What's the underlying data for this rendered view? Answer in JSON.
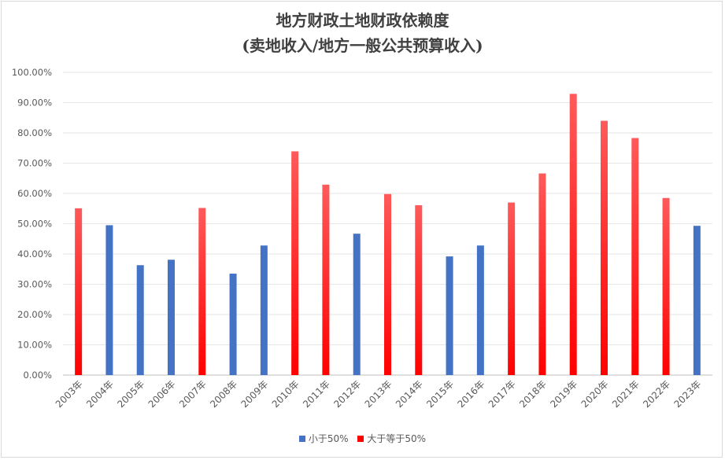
{
  "chart_data": {
    "type": "bar",
    "title": "地方财政土地财政依赖度",
    "subtitle": "(卖地收入/地方一般公共预算收入)",
    "categories": [
      "2003年",
      "2004年",
      "2005年",
      "2006年",
      "2007年",
      "2008年",
      "2009年",
      "2010年",
      "2011年",
      "2012年",
      "2013年",
      "2014年",
      "2015年",
      "2016年",
      "2017年",
      "2018年",
      "2019年",
      "2020年",
      "2021年",
      "2022年",
      "2023年"
    ],
    "series": [
      {
        "name": "小于50%",
        "color": "#4472c4",
        "values": [
          null,
          49.5,
          36.3,
          38.1,
          null,
          33.5,
          42.8,
          null,
          null,
          46.7,
          null,
          null,
          39.2,
          42.8,
          null,
          null,
          null,
          null,
          null,
          null,
          49.3
        ]
      },
      {
        "name": "大于等于50%",
        "color": "#ff0000",
        "values": [
          55.1,
          null,
          null,
          null,
          55.2,
          null,
          null,
          73.9,
          62.9,
          null,
          59.8,
          56.1,
          null,
          null,
          57.0,
          66.6,
          92.9,
          84.0,
          78.3,
          58.5,
          null
        ]
      }
    ],
    "ylim": [
      0,
      100
    ],
    "yticks": [
      "0.00%",
      "10.00%",
      "20.00%",
      "30.00%",
      "40.00%",
      "50.00%",
      "60.00%",
      "70.00%",
      "80.00%",
      "90.00%",
      "100.00%"
    ],
    "grid": true,
    "legend_position": "bottom"
  }
}
